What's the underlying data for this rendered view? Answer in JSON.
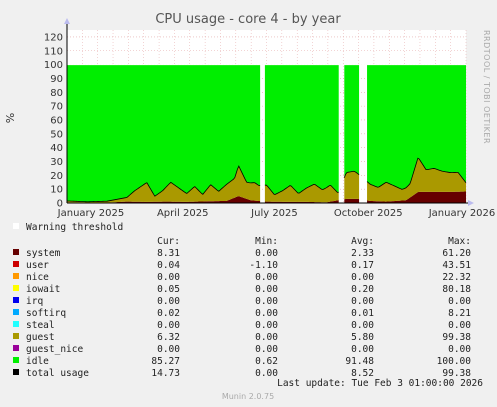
{
  "title": "CPU usage - core 4 - by year",
  "ylabel": "%",
  "side_label": "RRDTOOL / TOBI OETIKER",
  "warning_label": "Warning threshold",
  "headers": {
    "cur": "Cur:",
    "min": "Min:",
    "avg": "Avg:",
    "max": "Max:"
  },
  "legend": [
    {
      "name": "system",
      "color": "#660000",
      "cur": "8.31",
      "min": "0.00",
      "avg": "2.33",
      "max": "61.20"
    },
    {
      "name": "user",
      "color": "#cc0000",
      "cur": "0.04",
      "min": "-1.10",
      "avg": "0.17",
      "max": "43.51"
    },
    {
      "name": "nice",
      "color": "#ff9900",
      "cur": "0.00",
      "min": "0.00",
      "avg": "0.00",
      "max": "22.32"
    },
    {
      "name": "iowait",
      "color": "#ffff00",
      "cur": "0.05",
      "min": "0.00",
      "avg": "0.20",
      "max": "80.18"
    },
    {
      "name": "irq",
      "color": "#0000ee",
      "cur": "0.00",
      "min": "0.00",
      "avg": "0.00",
      "max": "0.00"
    },
    {
      "name": "softirq",
      "color": "#00aaff",
      "cur": "0.02",
      "min": "0.00",
      "avg": "0.01",
      "max": "8.21"
    },
    {
      "name": "steal",
      "color": "#22ffff",
      "cur": "0.00",
      "min": "0.00",
      "avg": "0.00",
      "max": "0.00"
    },
    {
      "name": "guest",
      "color": "#aa9900",
      "cur": "6.32",
      "min": "0.00",
      "avg": "5.80",
      "max": "99.38"
    },
    {
      "name": "guest_nice",
      "color": "#990099",
      "cur": "0.00",
      "min": "0.00",
      "avg": "0.00",
      "max": "0.00"
    },
    {
      "name": "idle",
      "color": "#00ee00",
      "cur": "85.27",
      "min": "0.62",
      "avg": "91.48",
      "max": "100.00"
    },
    {
      "name": "total usage",
      "color": "#000000",
      "cur": "14.73",
      "min": "0.00",
      "avg": "8.52",
      "max": "99.38"
    }
  ],
  "last_update": "Last update:  Tue Feb  3 01:00:00 2026",
  "footer": "Munin 2.0.75",
  "chart_data": {
    "type": "area",
    "title": "CPU usage - core 4 - by year",
    "ylabel": "%",
    "xlabel": "",
    "ylim": [
      0,
      125
    ],
    "yticks": [
      0,
      10,
      20,
      30,
      40,
      50,
      60,
      70,
      80,
      90,
      100,
      110,
      120
    ],
    "x_tick_labels": [
      {
        "label": "January 2025",
        "pos": 0.06
      },
      {
        "label": "April 2025",
        "pos": 0.29
      },
      {
        "label": "July 2025",
        "pos": 0.52
      },
      {
        "label": "October 2025",
        "pos": 0.755
      },
      {
        "label": "January 2026",
        "pos": 0.99
      }
    ],
    "warning_threshold": 100,
    "gaps": [
      [
        0.484,
        0.496
      ],
      [
        0.681,
        0.695
      ],
      [
        0.732,
        0.752
      ]
    ],
    "series": [
      {
        "name": "system",
        "color": "#660000",
        "points": [
          [
            0,
            0.5
          ],
          [
            0.1,
            0.3
          ],
          [
            0.15,
            1
          ],
          [
            0.2,
            0.8
          ],
          [
            0.25,
            1
          ],
          [
            0.3,
            0.8
          ],
          [
            0.35,
            1.2
          ],
          [
            0.4,
            1.5
          ],
          [
            0.43,
            5
          ],
          [
            0.46,
            2
          ],
          [
            0.5,
            1
          ],
          [
            0.55,
            0.8
          ],
          [
            0.6,
            0.8
          ],
          [
            0.65,
            0.5
          ],
          [
            0.7,
            3
          ],
          [
            0.73,
            3
          ],
          [
            0.76,
            1.5
          ],
          [
            0.8,
            1
          ],
          [
            0.85,
            2
          ],
          [
            0.88,
            8
          ],
          [
            0.92,
            8
          ],
          [
            0.96,
            8
          ],
          [
            1,
            8.3
          ]
        ]
      },
      {
        "name": "guest",
        "color": "#aa9900",
        "points": [
          [
            0,
            1
          ],
          [
            0.05,
            0.5
          ],
          [
            0.1,
            1
          ],
          [
            0.15,
            3
          ],
          [
            0.17,
            8
          ],
          [
            0.19,
            12
          ],
          [
            0.2,
            14
          ],
          [
            0.22,
            4
          ],
          [
            0.24,
            8
          ],
          [
            0.26,
            14
          ],
          [
            0.28,
            10
          ],
          [
            0.3,
            6
          ],
          [
            0.32,
            11
          ],
          [
            0.34,
            5
          ],
          [
            0.36,
            12
          ],
          [
            0.38,
            7
          ],
          [
            0.4,
            12
          ],
          [
            0.42,
            14
          ],
          [
            0.43,
            22
          ],
          [
            0.45,
            12
          ],
          [
            0.47,
            13
          ],
          [
            0.482,
            11
          ],
          [
            0.5,
            12
          ],
          [
            0.52,
            5
          ],
          [
            0.54,
            8
          ],
          [
            0.56,
            12
          ],
          [
            0.58,
            6
          ],
          [
            0.6,
            10
          ],
          [
            0.62,
            13
          ],
          [
            0.64,
            9
          ],
          [
            0.66,
            12
          ],
          [
            0.68,
            5
          ],
          [
            0.7,
            19
          ],
          [
            0.72,
            20
          ],
          [
            0.76,
            12
          ],
          [
            0.78,
            10
          ],
          [
            0.8,
            14
          ],
          [
            0.82,
            11
          ],
          [
            0.84,
            8
          ],
          [
            0.86,
            10
          ],
          [
            0.88,
            25
          ],
          [
            0.9,
            16
          ],
          [
            0.92,
            17
          ],
          [
            0.94,
            15
          ],
          [
            0.96,
            14
          ],
          [
            0.98,
            14
          ],
          [
            1,
            6.3
          ]
        ]
      },
      {
        "name": "idle",
        "color": "#00ee00",
        "points": [
          [
            0,
            98.5
          ],
          [
            0.2,
            86
          ],
          [
            0.43,
            78
          ],
          [
            0.5,
            88
          ],
          [
            0.7,
            81
          ],
          [
            0.76,
            88
          ],
          [
            0.88,
            75
          ],
          [
            1,
            85.3
          ]
        ]
      }
    ]
  }
}
